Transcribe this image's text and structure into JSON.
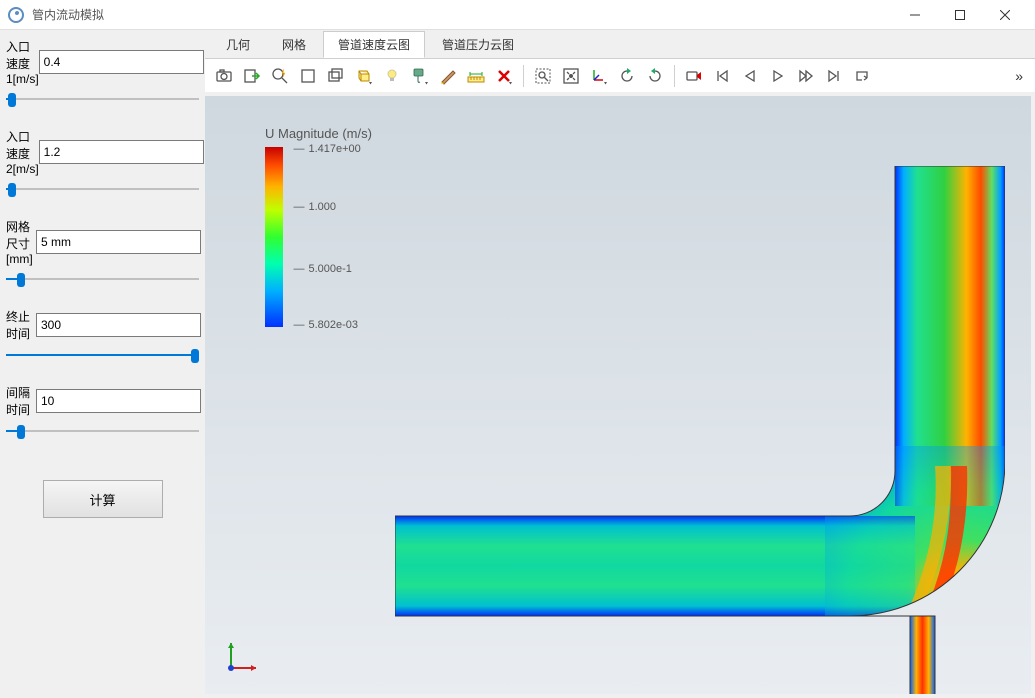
{
  "window": {
    "title": "管内流动模拟"
  },
  "params": [
    {
      "label": "入口速度1[m/s]",
      "value": "0.4",
      "slider_pct": 3
    },
    {
      "label": "入口速度2[m/s]",
      "value": "1.2",
      "slider_pct": 3
    },
    {
      "label": "网格尺寸[mm]",
      "value": "5 mm",
      "slider_pct": 8
    },
    {
      "label": "终止时间",
      "value": "300",
      "slider_pct": 98
    },
    {
      "label": "间隔时间",
      "value": "10",
      "slider_pct": 8
    }
  ],
  "buttons": {
    "compute": "计算"
  },
  "tabs": {
    "items": [
      "几何",
      "网格",
      "管道速度云图",
      "管道压力云图"
    ],
    "active_index": 2
  },
  "toolbar_icons": [
    "camera-icon",
    "export-icon",
    "zoom-flash-icon",
    "select-rect-icon",
    "select-layers-icon",
    "box-dropdown-icon",
    "lightbulb-icon",
    "paint-dropdown-icon",
    "brush-icon",
    "ruler-icon",
    "delete-icon",
    "|",
    "zoom-box-icon",
    "fit-all-icon",
    "axes-dropdown-icon",
    "rotate-ccw-icon",
    "rotate-cw-icon",
    "|",
    "record-icon",
    "first-frame-icon",
    "prev-frame-icon",
    "play-icon",
    "play-all-icon",
    "last-frame-icon",
    "loop-icon"
  ],
  "toolbar_more": "»",
  "legend": {
    "title": "U Magnitude (m/s)",
    "max": "1.417e+00",
    "mid1": "1.000",
    "mid2": "5.000e-1",
    "min": "5.802e-03",
    "colors": [
      "#c70000",
      "#ff4b00",
      "#ffb300",
      "#c0ff00",
      "#30ff30",
      "#00ffb0",
      "#00b0ff",
      "#0030ff"
    ]
  },
  "viewport": {
    "bg_top": "#cfd8df",
    "bg_bottom": "#e9edf1"
  },
  "axis": {
    "x_color": "#d02020",
    "y_color": "#20a020",
    "z_color": "#2040d0"
  }
}
